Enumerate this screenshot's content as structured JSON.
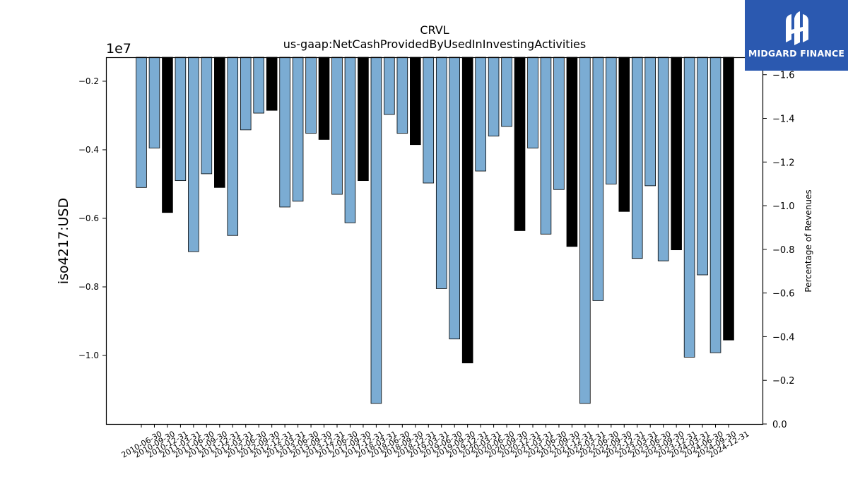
{
  "chart_data": {
    "type": "bar",
    "title": "CRVL",
    "subtitle": "us-gaap:NetCashProvidedByUsedInInvestingActivities",
    "ylabel": "iso4217:USD",
    "y_offset_label": "1e7",
    "y2label": "Percentage of Revenues",
    "ylim": [
      -1.2,
      -0.13
    ],
    "y2lim": [
      0.0,
      1.68
    ],
    "yticks": [
      -0.2,
      -0.4,
      -0.6,
      -0.8,
      -1.0
    ],
    "ytick_labels": [
      "−0.2",
      "−0.4",
      "−0.6",
      "−0.8",
      "−1.0"
    ],
    "y2ticks": [
      1.6,
      1.4,
      1.2,
      1.0,
      0.8,
      0.6,
      0.4,
      0.2,
      0.0
    ],
    "y2tick_labels": [
      "−1.6",
      "−1.4",
      "−1.2",
      "−1.0",
      "−0.8",
      "−0.6",
      "−0.4",
      "−0.2",
      "0.0"
    ],
    "grid": false,
    "categories": [
      "2010-06-30",
      "2010-09-30",
      "2010-12-31",
      "2011-03-31",
      "2011-06-30",
      "2011-09-30",
      "2011-12-31",
      "2012-03-31",
      "2012-06-30",
      "2012-09-30",
      "2012-12-31",
      "2013-03-31",
      "2013-06-30",
      "2013-09-30",
      "2013-12-31",
      "2017-06-30",
      "2017-09-30",
      "2017-12-31",
      "2018-03-31",
      "2018-06-30",
      "2018-09-30",
      "2018-12-31",
      "2019-03-31",
      "2019-06-30",
      "2019-09-30",
      "2019-12-31",
      "2020-03-31",
      "2020-06-30",
      "2020-09-30",
      "2020-12-31",
      "2021-03-31",
      "2021-06-30",
      "2021-09-30",
      "2021-12-31",
      "2022-03-31",
      "2022-06-30",
      "2022-09-30",
      "2022-12-31",
      "2023-03-31",
      "2023-06-30",
      "2023-09-30",
      "2023-12-31",
      "2024-03-31",
      "2024-06-30",
      "2024-09-30",
      "2024-12-31"
    ],
    "values": [
      -0.51,
      -0.395,
      -0.583,
      -0.49,
      -0.697,
      -0.47,
      -0.51,
      -0.65,
      -0.342,
      -0.293,
      -0.285,
      -0.567,
      -0.55,
      -0.352,
      -0.37,
      -0.53,
      -0.613,
      -0.49,
      -1.14,
      -0.297,
      -0.352,
      -0.385,
      -0.497,
      -0.805,
      -0.952,
      -1.022,
      -0.462,
      -0.36,
      -0.332,
      -0.636,
      -0.395,
      -0.646,
      -0.516,
      -0.682,
      -1.14,
      -0.84,
      -0.5,
      -0.58,
      -0.717,
      -0.505,
      -0.724,
      -0.692,
      -1.005,
      -0.765,
      -0.992,
      -0.955
    ],
    "bar_colors": {
      "quarter": "#7bacd3",
      "year_end": "#000000",
      "edge": "#000000"
    },
    "year_end_flags": [
      false,
      false,
      true,
      false,
      false,
      false,
      true,
      false,
      false,
      false,
      true,
      false,
      false,
      false,
      true,
      false,
      false,
      true,
      false,
      false,
      false,
      true,
      false,
      false,
      false,
      true,
      false,
      false,
      false,
      true,
      false,
      false,
      false,
      true,
      false,
      false,
      false,
      true,
      false,
      false,
      false,
      true,
      false,
      false,
      false,
      true
    ]
  },
  "logo": {
    "brand": "MIDGARD FINANCE",
    "icon": "midgard-logo-icon"
  }
}
